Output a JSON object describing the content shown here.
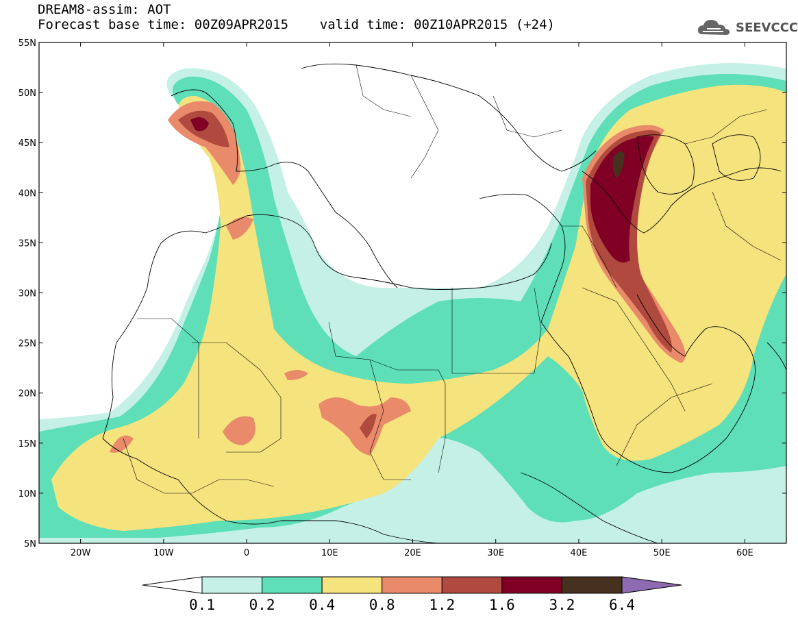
{
  "header": {
    "title_line1": "DREAM8-assim: AOT",
    "title_line2": "Forecast base time: 00Z09APR2015    valid time: 00Z10APR2015 (+24)"
  },
  "logo": {
    "text": "SEEVCCC",
    "icon": "cloud-icon"
  },
  "map": {
    "projection": "lat-lon",
    "lon_range": [
      -25,
      65
    ],
    "lat_range": [
      5,
      55
    ],
    "lat_ticks": [
      {
        "value": 55,
        "label": "55N"
      },
      {
        "value": 50,
        "label": "50N"
      },
      {
        "value": 45,
        "label": "45N"
      },
      {
        "value": 40,
        "label": "40N"
      },
      {
        "value": 35,
        "label": "35N"
      },
      {
        "value": 30,
        "label": "30N"
      },
      {
        "value": 25,
        "label": "25N"
      },
      {
        "value": 20,
        "label": "20N"
      },
      {
        "value": 15,
        "label": "15N"
      },
      {
        "value": 10,
        "label": "10N"
      },
      {
        "value": 5,
        "label": "5N"
      }
    ],
    "lon_ticks": [
      {
        "value": -20,
        "label": "20W"
      },
      {
        "value": -10,
        "label": "10W"
      },
      {
        "value": 0,
        "label": "0"
      },
      {
        "value": 10,
        "label": "10E"
      },
      {
        "value": 20,
        "label": "20E"
      },
      {
        "value": 30,
        "label": "30E"
      },
      {
        "value": 40,
        "label": "40E"
      },
      {
        "value": 50,
        "label": "50E"
      },
      {
        "value": 60,
        "label": "60E"
      }
    ]
  },
  "colorbar": {
    "levels": [
      "0.1",
      "0.2",
      "0.4",
      "0.8",
      "1.2",
      "1.6",
      "3.2",
      "6.4"
    ],
    "colors": [
      "#ffffff",
      "#c4f0e6",
      "#5edfb8",
      "#f5e37e",
      "#e98a6a",
      "#b04a3e",
      "#800025",
      "#46301e",
      "#8e6bb0"
    ]
  }
}
